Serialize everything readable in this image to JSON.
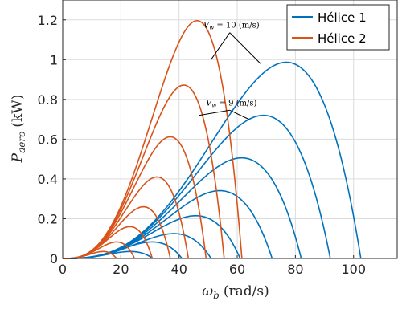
{
  "chart_data": {
    "type": "line",
    "xlabel_main": "ω",
    "xlabel_sub": "b",
    "xlabel_unit": "(rad/s)",
    "ylabel_main": "P",
    "ylabel_sub": "aero",
    "ylabel_unit": "(kW)",
    "xlim": [
      0,
      115
    ],
    "ylim": [
      0,
      1.3
    ],
    "xticks": [
      0,
      20,
      40,
      60,
      80,
      100
    ],
    "yticks": [
      0,
      0.2,
      0.4,
      0.6,
      0.8,
      1,
      1.2
    ],
    "xtick_labels": [
      "0",
      "20",
      "40",
      "60",
      "80",
      "100"
    ],
    "ytick_labels": [
      "0",
      "0.2",
      "0.4",
      "0.6",
      "0.8",
      "1",
      "1.2"
    ],
    "grid": true,
    "legend_position": "top-right",
    "series": [
      {
        "name": "Hélice 1",
        "color": "#0072BD",
        "curves": [
          {
            "peak_x": 21.6,
            "peak_y": 0.035,
            "end_x": 31
          },
          {
            "peak_x": 28.8,
            "peak_y": 0.083,
            "end_x": 41
          },
          {
            "peak_x": 35.9,
            "peak_y": 0.125,
            "end_x": 51
          },
          {
            "peak_x": 43.1,
            "peak_y": 0.215,
            "end_x": 61
          },
          {
            "peak_x": 50.3,
            "peak_y": 0.341,
            "end_x": 72
          },
          {
            "peak_x": 57.5,
            "peak_y": 0.506,
            "end_x": 82
          },
          {
            "peak_x": 63.9,
            "peak_y": 0.72,
            "end_x": 92
          },
          {
            "peak_x": 71.5,
            "peak_y": 0.987,
            "end_x": 102.5
          }
        ]
      },
      {
        "name": "Hélice 2",
        "color": "#D95319",
        "curves": [
          {
            "peak_x": 12.4,
            "peak_y": 0.035,
            "end_x": 18.5
          },
          {
            "peak_x": 16.5,
            "peak_y": 0.083,
            "end_x": 24.7
          },
          {
            "peak_x": 20.5,
            "peak_y": 0.16,
            "end_x": 30.8
          },
          {
            "peak_x": 24.7,
            "peak_y": 0.26,
            "end_x": 37
          },
          {
            "peak_x": 28.8,
            "peak_y": 0.41,
            "end_x": 43.2
          },
          {
            "peak_x": 32.9,
            "peak_y": 0.612,
            "end_x": 49.3
          },
          {
            "peak_x": 37.0,
            "peak_y": 0.872,
            "end_x": 55.5
          },
          {
            "peak_x": 41.1,
            "peak_y": 1.196,
            "end_x": 61.6
          }
        ]
      }
    ],
    "annotations": [
      {
        "text_main": "V",
        "text_sub": "w",
        "text_rest": " = 10 (m/s)",
        "text_at": [
          58,
          1.16
        ],
        "targets": [
          [
            51,
            1.0
          ],
          [
            68,
            0.98
          ]
        ]
      },
      {
        "text_main": "V",
        "text_sub": "w",
        "text_rest": " = 9 (m/s)",
        "text_at": [
          58,
          0.77
        ],
        "targets": [
          [
            47,
            0.72
          ],
          [
            64,
            0.7
          ]
        ]
      }
    ]
  }
}
